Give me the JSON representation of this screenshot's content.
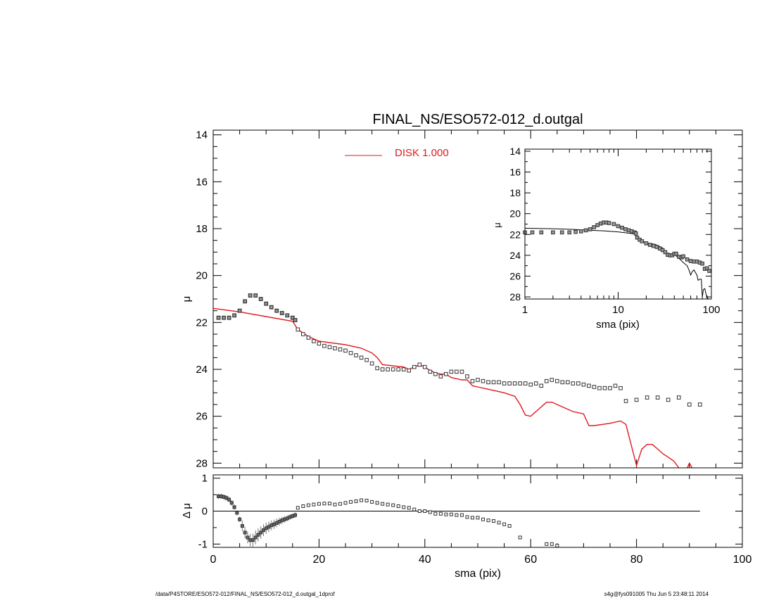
{
  "footer": {
    "left": "/data/P4STORE/ESO572-012/FINAL_NS/ESO572-012_d.outgal_1dprof",
    "right": "s4g@fys091005  Thu Jun  5 23:48:11 2014"
  },
  "chart_data": [
    {
      "id": "main",
      "type": "scatter",
      "title": "FINAL_NS/ESO572-012_d.outgal",
      "xlabel": "sma (pix)",
      "ylabel": "μ",
      "xlim": [
        0,
        100
      ],
      "ylim": [
        28.2,
        13.8
      ],
      "y_reversed": true,
      "xticks": [
        "0",
        "20",
        "40",
        "60",
        "80",
        "100"
      ],
      "yticks": [
        "14",
        "16",
        "18",
        "20",
        "22",
        "24",
        "26",
        "28"
      ],
      "legend": {
        "position": "top-center",
        "label": "DISK  1.000",
        "color": "#e0191e"
      },
      "series": [
        {
          "kind": "points",
          "color": "#555555",
          "x": [
            1,
            2,
            3,
            4,
            5,
            6,
            7,
            8,
            9,
            10,
            11,
            12,
            13,
            14,
            15,
            15.5,
            16,
            17,
            18,
            19,
            20,
            21,
            22,
            23,
            24,
            25,
            26,
            27,
            28,
            29,
            30,
            31,
            32,
            33,
            34,
            35,
            36,
            37,
            38,
            39,
            40,
            41,
            42,
            43,
            44,
            45,
            46,
            47,
            48,
            49,
            50,
            51,
            52,
            53,
            54,
            55,
            56,
            57,
            58,
            59,
            60,
            61,
            62,
            63,
            64,
            65,
            66,
            67,
            68,
            69,
            70,
            71,
            72,
            73,
            74,
            75,
            76,
            77,
            78,
            80,
            82,
            84,
            86,
            88,
            90,
            92
          ],
          "y": [
            21.8,
            21.8,
            21.8,
            21.7,
            21.5,
            21.1,
            20.85,
            20.85,
            21.0,
            21.2,
            21.35,
            21.5,
            21.6,
            21.7,
            21.8,
            21.9,
            22.3,
            22.5,
            22.65,
            22.8,
            22.9,
            23.0,
            23.05,
            23.1,
            23.15,
            23.2,
            23.3,
            23.4,
            23.5,
            23.6,
            23.75,
            23.95,
            24.0,
            24.0,
            24.0,
            24.0,
            24.0,
            24.05,
            23.9,
            23.8,
            23.9,
            24.1,
            24.2,
            24.3,
            24.2,
            24.1,
            24.1,
            24.1,
            24.3,
            24.5,
            24.45,
            24.5,
            24.55,
            24.55,
            24.55,
            24.6,
            24.6,
            24.6,
            24.6,
            24.6,
            24.65,
            24.6,
            24.7,
            24.5,
            24.45,
            24.5,
            24.55,
            24.55,
            24.6,
            24.6,
            24.65,
            24.7,
            24.75,
            24.8,
            24.8,
            24.8,
            24.7,
            24.8,
            25.35,
            25.3,
            25.2,
            25.2,
            25.3,
            25.2,
            25.5,
            25.5
          ]
        },
        {
          "kind": "line",
          "name": "DISK  1.000",
          "color": "#e0191e",
          "x": [
            0,
            5,
            10,
            15,
            16,
            18,
            20,
            25,
            28,
            30,
            31,
            32,
            34,
            36,
            37,
            38,
            39,
            40,
            41,
            42,
            43,
            44,
            45,
            46,
            47,
            48,
            49,
            50,
            52,
            55,
            57,
            58,
            59,
            60,
            62,
            63,
            64,
            66,
            68,
            70,
            71,
            72,
            75,
            77,
            78,
            80,
            81,
            82,
            83,
            85,
            87,
            89,
            90,
            91
          ],
          "y": [
            21.4,
            21.55,
            21.75,
            21.95,
            22.3,
            22.6,
            22.8,
            22.95,
            23.1,
            23.3,
            23.5,
            23.8,
            23.85,
            23.9,
            24.0,
            23.9,
            23.8,
            23.9,
            24.05,
            24.15,
            24.2,
            24.2,
            24.35,
            24.4,
            24.45,
            24.45,
            24.7,
            24.75,
            24.85,
            25.0,
            25.15,
            25.5,
            25.95,
            26.0,
            25.6,
            25.4,
            25.4,
            25.6,
            25.8,
            25.9,
            26.4,
            26.4,
            26.3,
            26.2,
            26.35,
            28.1,
            27.4,
            27.2,
            27.2,
            27.6,
            27.9,
            28.5,
            28.0,
            28.4
          ]
        }
      ]
    },
    {
      "id": "inset",
      "type": "scatter",
      "xlabel": "sma (pix)",
      "ylabel": "μ",
      "xscale": "log",
      "xlim": [
        1,
        100
      ],
      "ylim": [
        28.2,
        13.8
      ],
      "y_reversed": true,
      "xticks": [
        "1",
        "10",
        "100"
      ],
      "yticks": [
        "14",
        "16",
        "18",
        "20",
        "22",
        "24",
        "26",
        "28"
      ],
      "series": [
        {
          "kind": "points",
          "color": "#555555",
          "x": [
            1,
            1.2,
            1.5,
            2,
            2.5,
            3,
            3.5,
            4,
            4.5,
            5,
            5.5,
            6,
            6.5,
            7,
            7.5,
            8,
            9,
            10,
            11,
            12,
            13,
            14,
            15,
            15.5,
            16,
            17,
            18,
            20,
            22,
            24,
            26,
            28,
            30,
            32,
            34,
            36,
            38,
            40,
            42,
            45,
            48,
            50,
            55,
            60,
            65,
            70,
            75,
            80,
            85,
            90,
            95
          ],
          "y": [
            21.8,
            21.8,
            21.8,
            21.8,
            21.8,
            21.8,
            21.75,
            21.7,
            21.6,
            21.5,
            21.3,
            21.1,
            20.95,
            20.85,
            20.85,
            20.9,
            21.0,
            21.2,
            21.35,
            21.5,
            21.6,
            21.7,
            21.8,
            21.9,
            22.3,
            22.5,
            22.65,
            22.85,
            23.0,
            23.1,
            23.2,
            23.35,
            23.5,
            23.7,
            23.95,
            24.0,
            24.0,
            23.85,
            23.85,
            24.15,
            24.2,
            24.1,
            24.4,
            24.55,
            24.6,
            24.6,
            24.7,
            24.8,
            25.3,
            25.25,
            25.5
          ]
        },
        {
          "kind": "line",
          "color": "#000000",
          "x": [
            1,
            2,
            3,
            4,
            5,
            7,
            10,
            15,
            16,
            18,
            20,
            25,
            30,
            32,
            35,
            38,
            40,
            45,
            50,
            55,
            58,
            60,
            62,
            65,
            70,
            72,
            75,
            78,
            80,
            82,
            85,
            88,
            90,
            95
          ],
          "y": [
            21.4,
            21.45,
            21.5,
            21.55,
            21.6,
            21.65,
            21.75,
            21.95,
            22.3,
            22.6,
            22.8,
            22.95,
            23.3,
            23.8,
            23.9,
            23.85,
            23.9,
            24.3,
            24.7,
            25.0,
            25.5,
            25.9,
            25.6,
            25.4,
            25.9,
            26.4,
            26.3,
            26.3,
            28.0,
            27.3,
            27.2,
            27.8,
            28.0,
            28.4
          ]
        }
      ]
    },
    {
      "id": "residual",
      "type": "scatter",
      "xlabel": "sma (pix)",
      "ylabel": "Δ μ",
      "xlim": [
        0,
        100
      ],
      "ylim": [
        -1.1,
        1.1
      ],
      "xticks": [
        "0",
        "20",
        "40",
        "60",
        "80",
        "100"
      ],
      "yticks": [
        "1",
        "0",
        "-1"
      ],
      "zero_line": {
        "x": [
          0,
          92
        ]
      },
      "series": [
        {
          "kind": "points",
          "color": "#555555",
          "x": [
            1,
            1.5,
            2,
            2.5,
            3,
            3.5,
            4,
            4.5,
            5,
            5.5,
            6,
            6.5,
            7,
            7.5,
            8,
            8.5,
            9,
            9.5,
            10,
            10.5,
            11,
            11.5,
            12,
            12.5,
            13,
            13.5,
            14,
            14.5,
            15,
            15.5,
            16,
            17,
            18,
            19,
            20,
            21,
            22,
            23,
            24,
            25,
            26,
            27,
            28,
            29,
            30,
            31,
            32,
            33,
            34,
            35,
            36,
            37,
            38,
            39,
            40,
            41,
            42,
            43,
            44,
            45,
            46,
            47,
            48,
            49,
            50,
            51,
            52,
            53,
            54,
            55,
            56,
            58,
            63,
            64,
            65
          ],
          "y": [
            0.45,
            0.45,
            0.43,
            0.4,
            0.35,
            0.25,
            0.12,
            -0.05,
            -0.25,
            -0.45,
            -0.65,
            -0.8,
            -0.88,
            -0.88,
            -0.8,
            -0.72,
            -0.65,
            -0.58,
            -0.52,
            -0.48,
            -0.43,
            -0.4,
            -0.36,
            -0.32,
            -0.28,
            -0.25,
            -0.22,
            -0.18,
            -0.15,
            -0.12,
            0.1,
            0.15,
            0.18,
            0.2,
            0.22,
            0.23,
            0.23,
            0.2,
            0.22,
            0.25,
            0.28,
            0.3,
            0.33,
            0.32,
            0.28,
            0.25,
            0.22,
            0.2,
            0.18,
            0.15,
            0.12,
            0.1,
            0.05,
            0.0,
            0.0,
            -0.03,
            -0.08,
            -0.08,
            -0.1,
            -0.1,
            -0.12,
            -0.12,
            -0.18,
            -0.2,
            -0.2,
            -0.25,
            -0.28,
            -0.3,
            -0.35,
            -0.4,
            -0.45,
            -0.8,
            -1.0,
            -1.0,
            -1.05
          ],
          "error_bars": "present for x < 16"
        }
      ]
    }
  ]
}
